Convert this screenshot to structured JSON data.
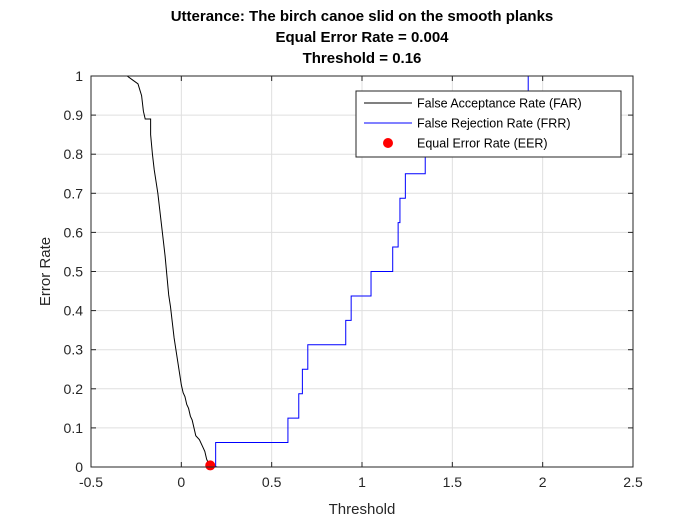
{
  "chart_data": {
    "type": "line",
    "title": [
      "Utterance: The birch canoe slid on the smooth planks",
      "Equal Error Rate = 0.004",
      "Threshold = 0.16"
    ],
    "xlabel": "Threshold",
    "ylabel": "Error Rate",
    "xlim": [
      -0.5,
      2.5
    ],
    "ylim": [
      0,
      1
    ],
    "xticks": [
      -0.5,
      0,
      0.5,
      1,
      1.5,
      2,
      2.5
    ],
    "xtick_labels": [
      "-0.5",
      "0",
      "0.5",
      "1",
      "1.5",
      "2",
      "2.5"
    ],
    "yticks": [
      0,
      0.1,
      0.2,
      0.3,
      0.4,
      0.5,
      0.6,
      0.7,
      0.8,
      0.9,
      1
    ],
    "ytick_labels": [
      "0",
      "0.1",
      "0.2",
      "0.3",
      "0.4",
      "0.5",
      "0.6",
      "0.7",
      "0.8",
      "0.9",
      "1"
    ],
    "grid": true,
    "legend_position": "top-right",
    "series": [
      {
        "name": "False Acceptance Rate (FAR)",
        "color": "#000000",
        "style": "line",
        "x": [
          -0.5,
          -0.3,
          -0.27,
          -0.24,
          -0.22,
          -0.21,
          -0.2,
          -0.19,
          -0.17,
          -0.17,
          -0.16,
          -0.15,
          -0.14,
          -0.13,
          -0.12,
          -0.11,
          -0.1,
          -0.09,
          -0.08,
          -0.07,
          -0.06,
          -0.05,
          -0.04,
          -0.03,
          -0.02,
          -0.01,
          0.0,
          0.01,
          0.02,
          0.03,
          0.04,
          0.05,
          0.06,
          0.07,
          0.08,
          0.1,
          0.12,
          0.13,
          0.14,
          0.15,
          0.16,
          0.17,
          0.18,
          0.19,
          0.2,
          0.25,
          2.5
        ],
        "y": [
          1.0,
          1.0,
          0.99,
          0.98,
          0.95,
          0.91,
          0.89,
          0.89,
          0.89,
          0.85,
          0.8,
          0.76,
          0.73,
          0.7,
          0.66,
          0.62,
          0.58,
          0.54,
          0.49,
          0.44,
          0.41,
          0.37,
          0.33,
          0.3,
          0.27,
          0.24,
          0.21,
          0.19,
          0.18,
          0.16,
          0.15,
          0.13,
          0.12,
          0.1,
          0.08,
          0.07,
          0.05,
          0.04,
          0.02,
          0.01,
          0.01,
          0.005,
          0.003,
          0.001,
          0.0,
          0.0,
          0.0
        ]
      },
      {
        "name": "False Rejection Rate (FRR)",
        "color": "#0000ff",
        "style": "step",
        "x": [
          -0.5,
          0.19,
          0.59,
          0.63,
          0.65,
          0.67,
          0.7,
          0.91,
          0.93,
          0.94,
          1.03,
          1.05,
          1.16,
          1.17,
          1.2,
          1.21,
          1.24,
          1.3,
          1.35,
          1.37,
          1.42,
          1.54,
          1.55,
          1.57,
          1.66,
          1.77,
          1.82,
          1.92,
          2.5
        ],
        "y": [
          0.0,
          0.0625,
          0.125,
          0.125,
          0.1875,
          0.25,
          0.3125,
          0.375,
          0.375,
          0.4375,
          0.4375,
          0.5,
          0.5,
          0.5625,
          0.625,
          0.6875,
          0.75,
          0.75,
          0.8125,
          0.8125,
          0.875,
          0.9375,
          0.9375,
          0.9375,
          0.9375,
          0.9375,
          0.9375,
          1.0,
          1.0
        ]
      },
      {
        "name": "Equal Error Rate (EER)",
        "color": "#ff0000",
        "style": "marker",
        "x": [
          0.16
        ],
        "y": [
          0.004
        ]
      }
    ]
  }
}
